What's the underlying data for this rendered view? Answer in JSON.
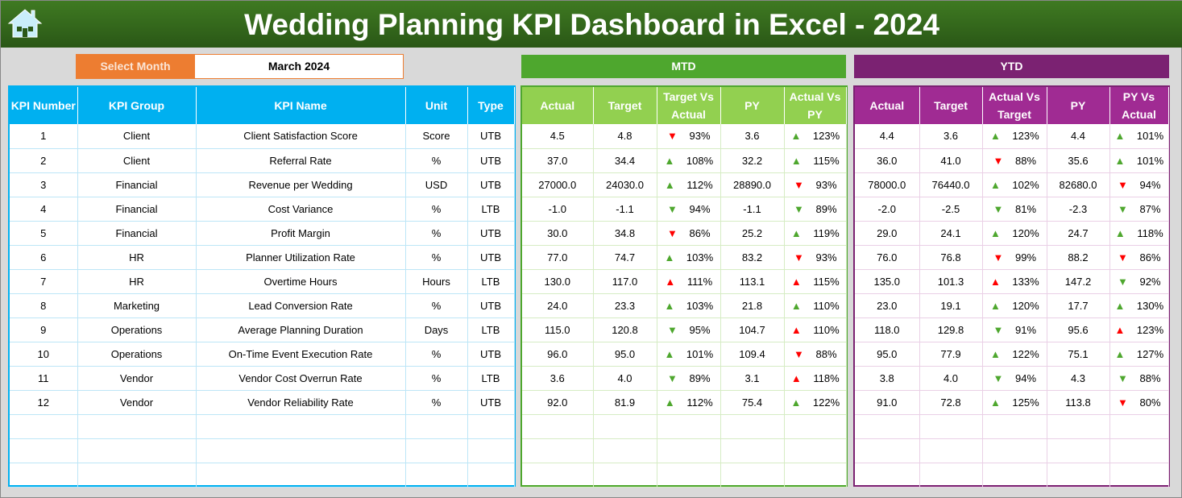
{
  "title": "Wedding Planning KPI Dashboard in Excel - 2024",
  "icons": {
    "home": "home-icon"
  },
  "select_month": {
    "label": "Select Month",
    "value": "March 2024"
  },
  "colors": {
    "kpi_header": "#00b0f0",
    "mtd_band": "#4ea72e",
    "mtd_header": "#92d050",
    "ytd_band": "#7b2272",
    "ytd_header": "#a02b93",
    "select": "#ed7d31",
    "up_good": "#4ea72e",
    "bad": "#ff0000"
  },
  "kpi_table": {
    "headers": [
      "KPI Number",
      "KPI Group",
      "KPI Name",
      "Unit",
      "Type"
    ],
    "rows": [
      [
        "1",
        "Client",
        "Client Satisfaction Score",
        "Score",
        "UTB"
      ],
      [
        "2",
        "Client",
        "Referral Rate",
        "%",
        "UTB"
      ],
      [
        "3",
        "Financial",
        "Revenue per Wedding",
        "USD",
        "UTB"
      ],
      [
        "4",
        "Financial",
        "Cost Variance",
        "%",
        "LTB"
      ],
      [
        "5",
        "Financial",
        "Profit Margin",
        "%",
        "UTB"
      ],
      [
        "6",
        "HR",
        "Planner Utilization Rate",
        "%",
        "UTB"
      ],
      [
        "7",
        "HR",
        "Overtime Hours",
        "Hours",
        "LTB"
      ],
      [
        "8",
        "Marketing",
        "Lead Conversion Rate",
        "%",
        "UTB"
      ],
      [
        "9",
        "Operations",
        "Average Planning Duration",
        "Days",
        "LTB"
      ],
      [
        "10",
        "Operations",
        "On-Time Event Execution Rate",
        "%",
        "UTB"
      ],
      [
        "11",
        "Vendor",
        "Vendor Cost Overrun Rate",
        "%",
        "LTB"
      ],
      [
        "12",
        "Vendor",
        "Vendor Reliability Rate",
        "%",
        "UTB"
      ]
    ]
  },
  "mtd": {
    "label": "MTD",
    "headers": [
      "Actual",
      "Target",
      "Target Vs Actual",
      "PY",
      "Actual Vs PY"
    ],
    "rows": [
      [
        "4.5",
        "4.8",
        [
          "down-red",
          "93%"
        ],
        "3.6",
        [
          "up-green",
          "123%"
        ]
      ],
      [
        "37.0",
        "34.4",
        [
          "up-green",
          "108%"
        ],
        "32.2",
        [
          "up-green",
          "115%"
        ]
      ],
      [
        "27000.0",
        "24030.0",
        [
          "up-green",
          "112%"
        ],
        "28890.0",
        [
          "down-red",
          "93%"
        ]
      ],
      [
        "-1.0",
        "-1.1",
        [
          "down-green",
          "94%"
        ],
        "-1.1",
        [
          "down-green",
          "89%"
        ]
      ],
      [
        "30.0",
        "34.8",
        [
          "down-red",
          "86%"
        ],
        "25.2",
        [
          "up-green",
          "119%"
        ]
      ],
      [
        "77.0",
        "74.7",
        [
          "up-green",
          "103%"
        ],
        "83.2",
        [
          "down-red",
          "93%"
        ]
      ],
      [
        "130.0",
        "117.0",
        [
          "up-red",
          "111%"
        ],
        "113.1",
        [
          "up-red",
          "115%"
        ]
      ],
      [
        "24.0",
        "23.3",
        [
          "up-green",
          "103%"
        ],
        "21.8",
        [
          "up-green",
          "110%"
        ]
      ],
      [
        "115.0",
        "120.8",
        [
          "down-green",
          "95%"
        ],
        "104.7",
        [
          "up-red",
          "110%"
        ]
      ],
      [
        "96.0",
        "95.0",
        [
          "up-green",
          "101%"
        ],
        "109.4",
        [
          "down-red",
          "88%"
        ]
      ],
      [
        "3.6",
        "4.0",
        [
          "down-green",
          "89%"
        ],
        "3.1",
        [
          "up-red",
          "118%"
        ]
      ],
      [
        "92.0",
        "81.9",
        [
          "up-green",
          "112%"
        ],
        "75.4",
        [
          "up-green",
          "122%"
        ]
      ]
    ]
  },
  "ytd": {
    "label": "YTD",
    "headers": [
      "Actual",
      "Target",
      "Actual Vs Target",
      "PY",
      "PY Vs Actual"
    ],
    "rows": [
      [
        "4.4",
        "3.6",
        [
          "up-green",
          "123%"
        ],
        "4.4",
        [
          "up-green",
          "101%"
        ]
      ],
      [
        "36.0",
        "41.0",
        [
          "down-red",
          "88%"
        ],
        "35.6",
        [
          "up-green",
          "101%"
        ]
      ],
      [
        "78000.0",
        "76440.0",
        [
          "up-green",
          "102%"
        ],
        "82680.0",
        [
          "down-red",
          "94%"
        ]
      ],
      [
        "-2.0",
        "-2.5",
        [
          "down-green",
          "81%"
        ],
        "-2.3",
        [
          "down-green",
          "87%"
        ]
      ],
      [
        "29.0",
        "24.1",
        [
          "up-green",
          "120%"
        ],
        "24.7",
        [
          "up-green",
          "118%"
        ]
      ],
      [
        "76.0",
        "76.8",
        [
          "down-red",
          "99%"
        ],
        "88.2",
        [
          "down-red",
          "86%"
        ]
      ],
      [
        "135.0",
        "101.3",
        [
          "up-red",
          "133%"
        ],
        "147.2",
        [
          "down-green",
          "92%"
        ]
      ],
      [
        "23.0",
        "19.1",
        [
          "up-green",
          "120%"
        ],
        "17.7",
        [
          "up-green",
          "130%"
        ]
      ],
      [
        "118.0",
        "129.8",
        [
          "down-green",
          "91%"
        ],
        "95.6",
        [
          "up-red",
          "123%"
        ]
      ],
      [
        "95.0",
        "77.9",
        [
          "up-green",
          "122%"
        ],
        "75.1",
        [
          "up-green",
          "127%"
        ]
      ],
      [
        "3.8",
        "4.0",
        [
          "down-green",
          "94%"
        ],
        "4.3",
        [
          "down-green",
          "88%"
        ]
      ],
      [
        "91.0",
        "72.8",
        [
          "up-green",
          "125%"
        ],
        "113.8",
        [
          "down-red",
          "80%"
        ]
      ]
    ]
  }
}
